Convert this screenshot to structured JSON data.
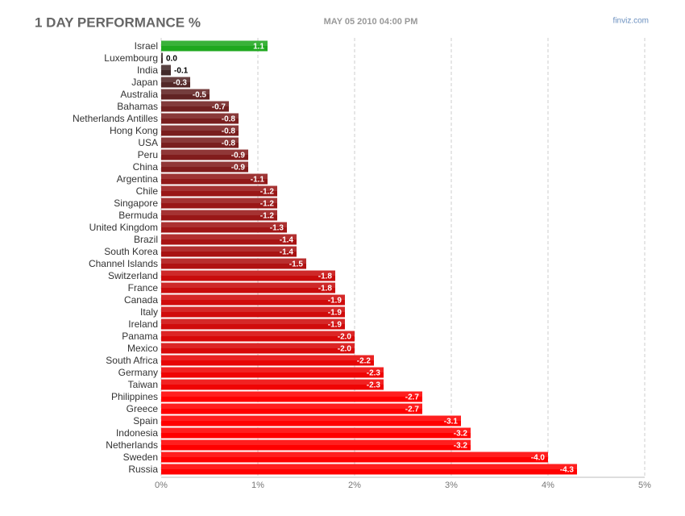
{
  "chart_data": {
    "type": "bar",
    "orientation": "horizontal",
    "title": "1 DAY PERFORMANCE %",
    "subtitle": "MAY 05 2010 04:00 PM",
    "source": "finviz.com",
    "categories": [
      "Israel",
      "Luxembourg",
      "India",
      "Japan",
      "Australia",
      "Bahamas",
      "Netherlands Antilles",
      "Hong Kong",
      "USA",
      "Peru",
      "China",
      "Argentina",
      "Chile",
      "Singapore",
      "Bermuda",
      "United Kingdom",
      "Brazil",
      "South Korea",
      "Channel Islands",
      "Switzerland",
      "France",
      "Canada",
      "Italy",
      "Ireland",
      "Panama",
      "Mexico",
      "South Africa",
      "Germany",
      "Taiwan",
      "Philippines",
      "Greece",
      "Spain",
      "Indonesia",
      "Netherlands",
      "Sweden",
      "Russia"
    ],
    "values": [
      1.1,
      0.0,
      -0.1,
      -0.3,
      -0.5,
      -0.7,
      -0.8,
      -0.8,
      -0.8,
      -0.9,
      -0.9,
      -1.1,
      -1.2,
      -1.2,
      -1.2,
      -1.3,
      -1.4,
      -1.4,
      -1.5,
      -1.8,
      -1.8,
      -1.9,
      -1.9,
      -1.9,
      -2.0,
      -2.0,
      -2.2,
      -2.3,
      -2.3,
      -2.7,
      -2.7,
      -3.1,
      -3.2,
      -3.2,
      -4.0,
      -4.3
    ],
    "value_labels": [
      "1.1",
      "0.0",
      "-0.1",
      "-0.3",
      "-0.5",
      "-0.7",
      "-0.8",
      "-0.8",
      "-0.8",
      "-0.9",
      "-0.9",
      "-1.1",
      "-1.2",
      "-1.2",
      "-1.2",
      "-1.3",
      "-1.4",
      "-1.4",
      "-1.5",
      "-1.8",
      "-1.8",
      "-1.9",
      "-1.9",
      "-1.9",
      "-2.0",
      "-2.0",
      "-2.2",
      "-2.3",
      "-2.3",
      "-2.7",
      "-2.7",
      "-3.1",
      "-3.2",
      "-3.2",
      "-4.0",
      "-4.3"
    ],
    "positive_color": "#1fa81f",
    "negative_colors": [
      "#3a2c2c",
      "#ff0000"
    ],
    "xlim": [
      0,
      5
    ],
    "xticks": [
      {
        "value": 0,
        "label": "0%"
      },
      {
        "value": 1,
        "label": "1%"
      },
      {
        "value": 2,
        "label": "2%"
      },
      {
        "value": 3,
        "label": "3%"
      },
      {
        "value": 4,
        "label": "4%"
      },
      {
        "value": 5,
        "label": "5%"
      }
    ],
    "grid": true
  }
}
